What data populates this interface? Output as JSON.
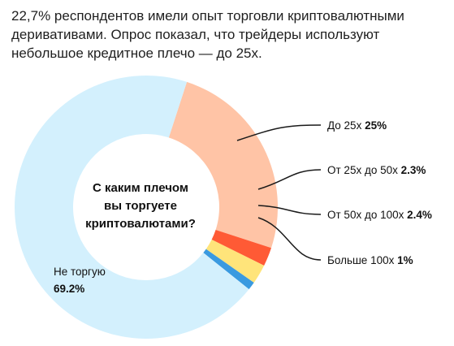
{
  "intro": "22,7% респондентов имели опыт торговли криптовалютными деривативами. Опрос показал, что трейдеры используют небольшое кредитное плечо — до 25x.",
  "chart_data": {
    "type": "pie",
    "title": "С каким плечом вы торгуете криптовалютами?",
    "title_lines": [
      "С каким плечом",
      "вы торгуете",
      "криптовалютами?"
    ],
    "unit": "%",
    "slices": [
      {
        "label": "До 25x",
        "value": 25,
        "value_text": "25%",
        "color": "#ffc4a6"
      },
      {
        "label": "От 25x до 50x",
        "value": 2.3,
        "value_text": "2.3%",
        "color": "#ff5a35"
      },
      {
        "label": "От 50x до 100x",
        "value": 2.4,
        "value_text": "2.4%",
        "color": "#ffe47a"
      },
      {
        "label": "Больше 100x",
        "value": 1,
        "value_text": "1%",
        "color": "#3a9ae0"
      },
      {
        "label": "Не торгую",
        "value": 69.2,
        "value_text": "69.2%",
        "color": "#d3f0fd"
      }
    ],
    "legend_placement": "right"
  }
}
